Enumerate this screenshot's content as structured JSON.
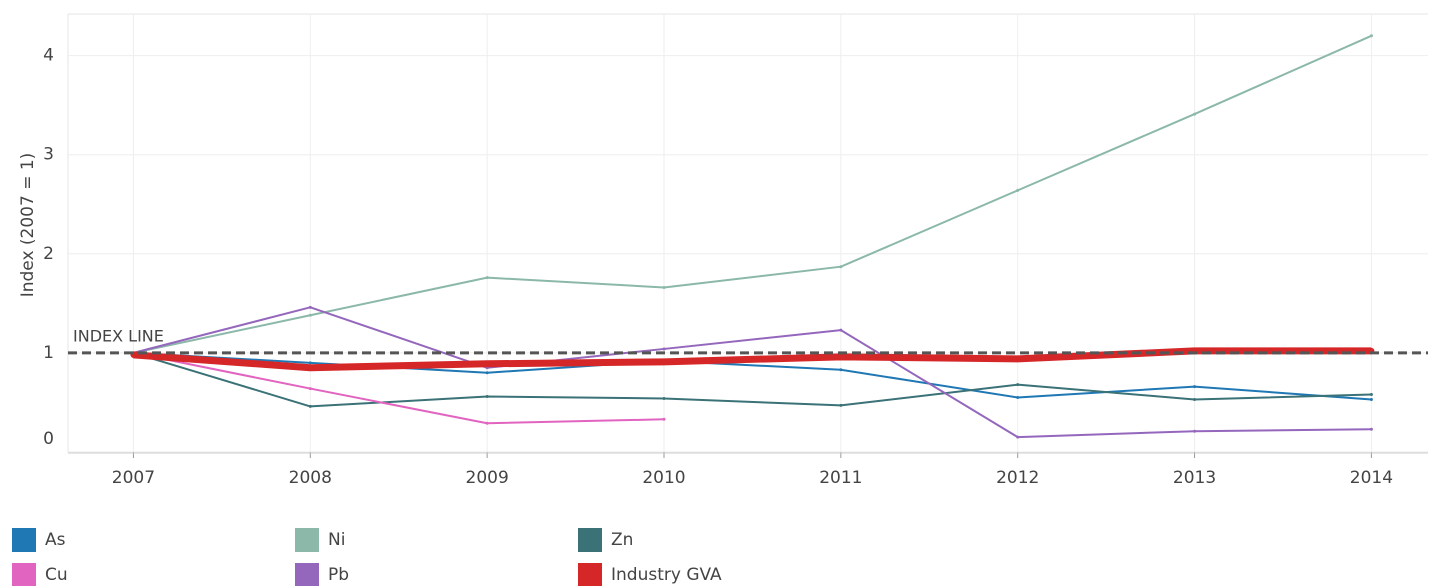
{
  "chart_data": {
    "type": "line",
    "y_label": "Index (2007 = 1)",
    "x": [
      2007,
      2008,
      2009,
      2010,
      2011,
      2012,
      2013,
      2014
    ],
    "xlim": [
      2006.63,
      2014.32
    ],
    "xticks": [
      2007,
      2008,
      2009,
      2010,
      2011,
      2012,
      2013,
      2014
    ],
    "ylim": [
      0,
      4.42
    ],
    "yticks": [
      0,
      1,
      2,
      3,
      4
    ],
    "grid": true,
    "index_line": {
      "value": 1,
      "label": "INDEX LINE"
    },
    "series": [
      {
        "name": "As",
        "color": "#1f77b4",
        "line_width": 2,
        "values": [
          1,
          0.9,
          0.8,
          0.92,
          0.83,
          0.55,
          0.66,
          0.53
        ]
      },
      {
        "name": "Ni",
        "color": "#8bb8a8",
        "line_width": 2,
        "values": [
          1,
          1.38,
          1.76,
          1.66,
          1.87,
          2.64,
          3.41,
          4.2
        ]
      },
      {
        "name": "Zn",
        "color": "#3a7277",
        "line_width": 2,
        "values": [
          1,
          0.46,
          0.56,
          0.54,
          0.47,
          0.68,
          0.53,
          0.58
        ]
      },
      {
        "name": "Cu",
        "color": "#e164c0",
        "line_width": 2,
        "values": [
          1,
          0.64,
          0.29,
          0.33,
          null,
          null,
          null,
          null
        ]
      },
      {
        "name": "Pb",
        "color": "#9467bd",
        "line_width": 2,
        "values": [
          1,
          1.46,
          0.85,
          1.04,
          1.23,
          0.15,
          0.21,
          0.23
        ]
      },
      {
        "name": "Industry GVA",
        "color": "#d62728",
        "line_width": 7,
        "values": [
          0.98,
          0.85,
          0.89,
          0.91,
          0.96,
          0.94,
          1.02,
          1.02
        ]
      }
    ]
  }
}
